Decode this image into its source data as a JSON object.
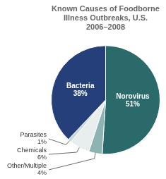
{
  "chart_data": {
    "type": "pie",
    "title": "Known Causes of Foodborne\nIllness Outbreaks, U.S.\n2006–2008",
    "categories": [
      "Norovirus",
      "Other/Multiple",
      "Chemicals",
      "Parasites",
      "Bacteria"
    ],
    "values": [
      51,
      4,
      6,
      1,
      38
    ],
    "value_labels": [
      "51%",
      "4%",
      "6%",
      "1%",
      "38%"
    ],
    "colors": [
      "#2b6a6a",
      "#8fb3b3",
      "#e8eded",
      "#c8d8d8",
      "#253f7a"
    ],
    "data_labels": true
  }
}
